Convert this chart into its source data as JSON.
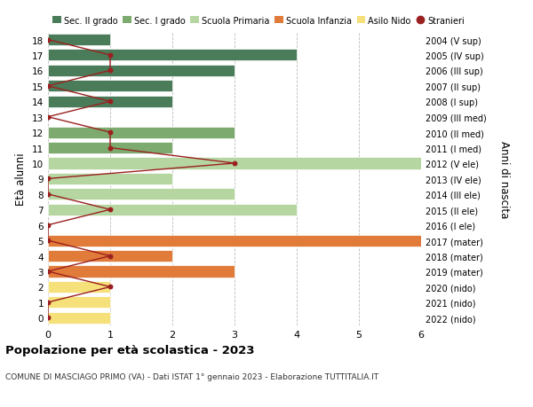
{
  "ages": [
    18,
    17,
    16,
    15,
    14,
    13,
    12,
    11,
    10,
    9,
    8,
    7,
    6,
    5,
    4,
    3,
    2,
    1,
    0
  ],
  "right_labels": [
    "2004 (V sup)",
    "2005 (IV sup)",
    "2006 (III sup)",
    "2007 (II sup)",
    "2008 (I sup)",
    "2009 (III med)",
    "2010 (II med)",
    "2011 (I med)",
    "2012 (V ele)",
    "2013 (IV ele)",
    "2014 (III ele)",
    "2015 (II ele)",
    "2016 (I ele)",
    "2017 (mater)",
    "2018 (mater)",
    "2019 (mater)",
    "2020 (nido)",
    "2021 (nido)",
    "2022 (nido)"
  ],
  "bar_values": [
    1,
    4,
    3,
    2,
    2,
    0,
    3,
    2,
    6,
    2,
    3,
    4,
    0,
    6,
    2,
    3,
    1,
    1,
    1
  ],
  "bar_colors": [
    "#4a7c59",
    "#4a7c59",
    "#4a7c59",
    "#4a7c59",
    "#4a7c59",
    "#7daa6e",
    "#7daa6e",
    "#7daa6e",
    "#b5d6a0",
    "#b5d6a0",
    "#b5d6a0",
    "#b5d6a0",
    "#b5d6a0",
    "#e07b39",
    "#e07b39",
    "#e07b39",
    "#f5e07a",
    "#f5e07a",
    "#f5e07a"
  ],
  "stranieri_values": [
    0,
    1,
    1,
    0,
    1,
    0,
    1,
    1,
    3,
    0,
    0,
    1,
    0,
    0,
    1,
    0,
    1,
    0,
    0
  ],
  "stranieri_color": "#9b2020",
  "legend_items": [
    {
      "label": "Sec. II grado",
      "color": "#4a7c59"
    },
    {
      "label": "Sec. I grado",
      "color": "#7daa6e"
    },
    {
      "label": "Scuola Primaria",
      "color": "#b5d6a0"
    },
    {
      "label": "Scuola Infanzia",
      "color": "#e07b39"
    },
    {
      "label": "Asilo Nido",
      "color": "#f5e07a"
    },
    {
      "label": "Stranieri",
      "color": "#9b2020"
    }
  ],
  "ylabel_left": "Età alunni",
  "ylabel_right": "Anni di nascita",
  "xlim": [
    0,
    6
  ],
  "xticks": [
    0,
    1,
    2,
    3,
    4,
    5,
    6
  ],
  "title": "Popolazione per età scolastica - 2023",
  "subtitle": "COMUNE DI MASCIAGO PRIMO (VA) - Dati ISTAT 1° gennaio 2023 - Elaborazione TUTTITALIA.IT",
  "bg_color": "#ffffff",
  "grid_color": "#bbbbbb"
}
